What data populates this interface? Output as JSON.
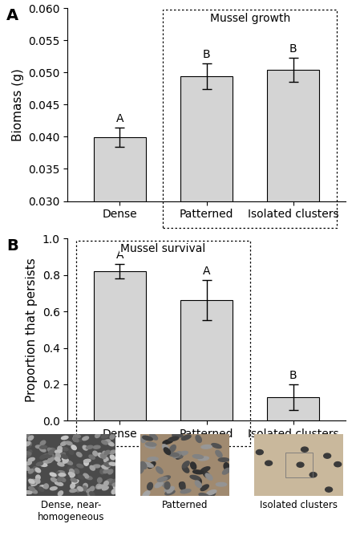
{
  "chart_data": [
    {
      "type": "bar",
      "panel": "A",
      "categories": [
        "Dense",
        "Patterned",
        "Isolated clusters"
      ],
      "values": [
        0.0399,
        0.0494,
        0.0504
      ],
      "errors": [
        0.0015,
        0.002,
        0.0019
      ],
      "annotations": [
        "A",
        "B",
        "B"
      ],
      "y_label": "Biomass (g)",
      "highlight": {
        "label": "Mussel growth",
        "categories": [
          "Patterned",
          "Isolated clusters"
        ]
      },
      "color": "#d4d4d4",
      "ylim": [
        0.03,
        0.06
      ],
      "yticks": [
        {
          "value": 0.03,
          "label": "0.030"
        },
        {
          "value": 0.035,
          "label": "0.035"
        },
        {
          "value": 0.04,
          "label": "0.040"
        },
        {
          "value": 0.045,
          "label": "0.045"
        },
        {
          "value": 0.05,
          "label": "0.050"
        },
        {
          "value": 0.055,
          "label": "0.055"
        },
        {
          "value": 0.06,
          "label": "0.060"
        }
      ],
      "grid": false
    },
    {
      "type": "bar",
      "panel": "B",
      "categories": [
        "Dense",
        "Patterned",
        "Isolated clusters"
      ],
      "values": [
        0.82,
        0.66,
        0.13
      ],
      "errors": [
        0.04,
        0.11,
        0.07
      ],
      "annotations": [
        "A",
        "A",
        "B"
      ],
      "y_label": "Proportion that persists",
      "highlight": {
        "label": "Mussel survival",
        "categories": [
          "Dense",
          "Patterned"
        ]
      },
      "color": "#d4d4d4",
      "ylim": [
        0.0,
        1.0
      ],
      "yticks": [
        {
          "value": 0.0,
          "label": "0.0"
        },
        {
          "value": 0.2,
          "label": "0.2"
        },
        {
          "value": 0.4,
          "label": "0.4"
        },
        {
          "value": 0.6,
          "label": "0.6"
        },
        {
          "value": 0.8,
          "label": "0.8"
        },
        {
          "value": 1.0,
          "label": "1.0"
        }
      ],
      "grid": false
    }
  ],
  "images": {
    "captions": [
      "Dense, near-\nhomogeneous",
      "Patterned",
      "Isolated clusters"
    ]
  }
}
